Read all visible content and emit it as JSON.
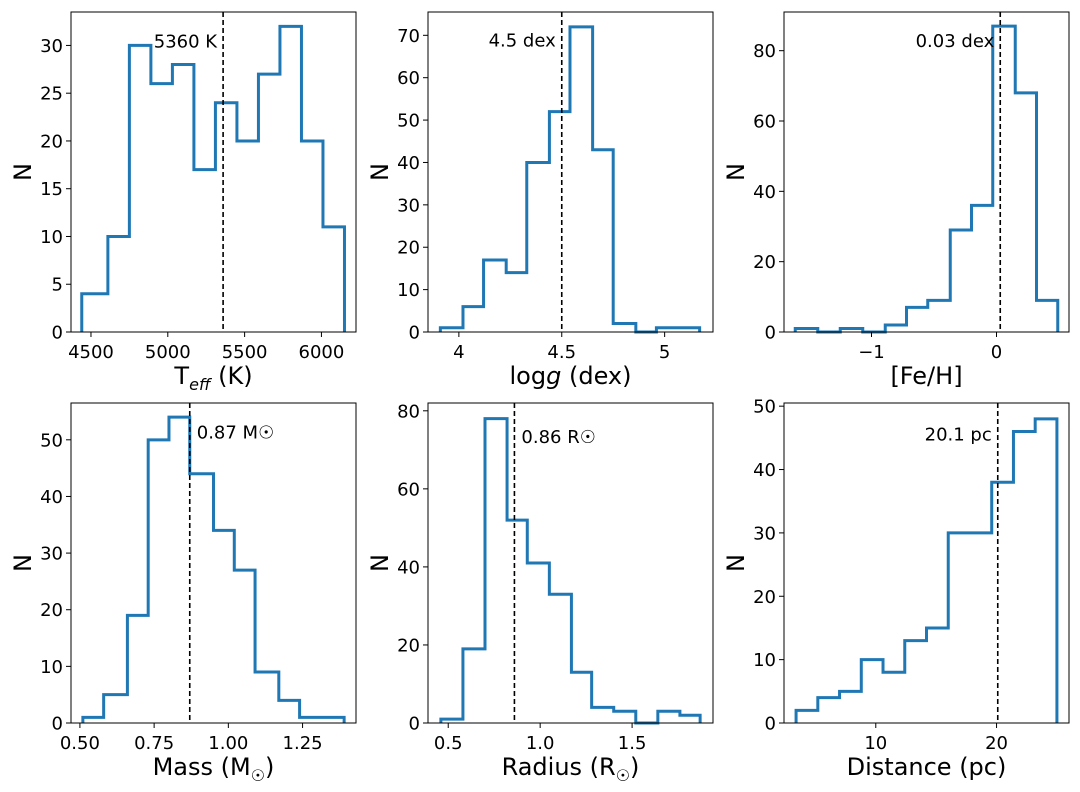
{
  "figure": {
    "ylabel": "N"
  },
  "chart_data": [
    {
      "type": "histogram",
      "xlabel_main": "T",
      "xlabel_sub": "eff",
      "xlabel_rest": " (K)",
      "ylabel": "N",
      "edges": [
        4440,
        4610,
        4750,
        4890,
        5030,
        5170,
        5310,
        5450,
        5590,
        5730,
        5870,
        6010,
        6150
      ],
      "counts": [
        4,
        10,
        30,
        26,
        28,
        17,
        24,
        20,
        27,
        32,
        20,
        11
      ],
      "xlim": [
        4370,
        6225
      ],
      "ylim": [
        0,
        33.5
      ],
      "xticks": [
        4500,
        5000,
        5500,
        6000
      ],
      "yticks": [
        0,
        5,
        10,
        15,
        20,
        25,
        30
      ],
      "median": 5360,
      "median_label": "5360 K",
      "label_side": "left",
      "label_y": 30.5,
      "color": "#1f77b4"
    },
    {
      "type": "histogram",
      "xlabel_main": "log",
      "xlabel_ital": "g",
      "xlabel_rest": " (dex)",
      "ylabel": "N",
      "edges": [
        3.91,
        4.02,
        4.12,
        4.23,
        4.33,
        4.44,
        4.54,
        4.65,
        4.75,
        4.86,
        4.96,
        5.06,
        5.17
      ],
      "counts": [
        1,
        6,
        17,
        14,
        40,
        52,
        72,
        43,
        2,
        0,
        1,
        1
      ],
      "xlim": [
        3.85,
        5.235
      ],
      "ylim": [
        0,
        75.5
      ],
      "xticks": [
        4.0,
        4.5,
        5.0
      ],
      "yticks": [
        0,
        10,
        20,
        30,
        40,
        50,
        60,
        70
      ],
      "median": 4.5,
      "median_label": "4.5 dex",
      "label_side": "left",
      "label_y": 69,
      "color": "#1f77b4"
    },
    {
      "type": "histogram",
      "xlabel_main": "[Fe/H]",
      "ylabel": "N",
      "edges": [
        -1.61,
        -1.43,
        -1.25,
        -1.07,
        -0.89,
        -0.72,
        -0.55,
        -0.37,
        -0.2,
        -0.03,
        0.15,
        0.32,
        0.49
      ],
      "counts": [
        1,
        0,
        1,
        0,
        2,
        7,
        9,
        29,
        36,
        87,
        68,
        9
      ],
      "xlim": [
        -1.7,
        0.58
      ],
      "ylim": [
        0,
        91
      ],
      "xticks": [
        -1,
        0
      ],
      "yticks": [
        0,
        20,
        40,
        60,
        80
      ],
      "median": 0.03,
      "median_label": "0.03 dex",
      "label_side": "left",
      "label_y": 83,
      "color": "#1f77b4"
    },
    {
      "type": "histogram",
      "xlabel_main": "Mass (M",
      "xlabel_sun": "☉",
      "xlabel_rest": ")",
      "ylabel": "N",
      "edges": [
        0.51,
        0.58,
        0.66,
        0.73,
        0.8,
        0.87,
        0.95,
        1.02,
        1.09,
        1.17,
        1.24,
        1.31,
        1.39
      ],
      "counts": [
        1,
        5,
        19,
        50,
        54,
        44,
        34,
        27,
        9,
        4,
        1,
        1
      ],
      "xlim": [
        0.47,
        1.43
      ],
      "ylim": [
        0,
        56.5
      ],
      "xticks": [
        0.5,
        0.75,
        1.0,
        1.25
      ],
      "ytick_labels_fmt": "int",
      "yticks": [
        0,
        10,
        20,
        30,
        40,
        50
      ],
      "xtick_labels": [
        "0.50",
        "0.75",
        "1.00",
        "1.25"
      ],
      "median": 0.87,
      "median_label": "0.87 M☉",
      "label_side": "right",
      "label_y": 51.5,
      "color": "#1f77b4"
    },
    {
      "type": "histogram",
      "xlabel_main": "Radius (R",
      "xlabel_sun": "☉",
      "xlabel_rest": ")",
      "ylabel": "N",
      "edges": [
        0.46,
        0.58,
        0.7,
        0.82,
        0.93,
        1.05,
        1.17,
        1.28,
        1.4,
        1.52,
        1.64,
        1.76,
        1.87
      ],
      "counts": [
        1,
        19,
        78,
        52,
        41,
        33,
        13,
        4,
        3,
        0,
        3,
        2
      ],
      "xlim": [
        0.39,
        1.94
      ],
      "ylim": [
        0,
        82
      ],
      "xticks": [
        0.5,
        1.0,
        1.5
      ],
      "yticks": [
        0,
        20,
        40,
        60,
        80
      ],
      "xtick_labels": [
        "0.5",
        "1.0",
        "1.5"
      ],
      "median": 0.86,
      "median_label": "0.86 R☉",
      "label_side": "right",
      "label_y": 73.5,
      "color": "#1f77b4"
    },
    {
      "type": "histogram",
      "xlabel_main": "Distance (pc)",
      "ylabel": "N",
      "edges": [
        3.4,
        5.2,
        7.0,
        8.8,
        10.6,
        12.4,
        14.2,
        16.0,
        17.8,
        19.6,
        21.4,
        23.2,
        25.0
      ],
      "counts": [
        2,
        4,
        5,
        10,
        8,
        13,
        15,
        30,
        30,
        38,
        46,
        48
      ],
      "xlim": [
        2.4,
        26.0
      ],
      "ylim": [
        0,
        50.5
      ],
      "xticks": [
        10,
        20
      ],
      "yticks": [
        0,
        10,
        20,
        30,
        40,
        50
      ],
      "median": 20.1,
      "median_label": "20.1 pc",
      "label_side": "left",
      "label_y": 45.7,
      "color": "#1f77b4"
    }
  ]
}
